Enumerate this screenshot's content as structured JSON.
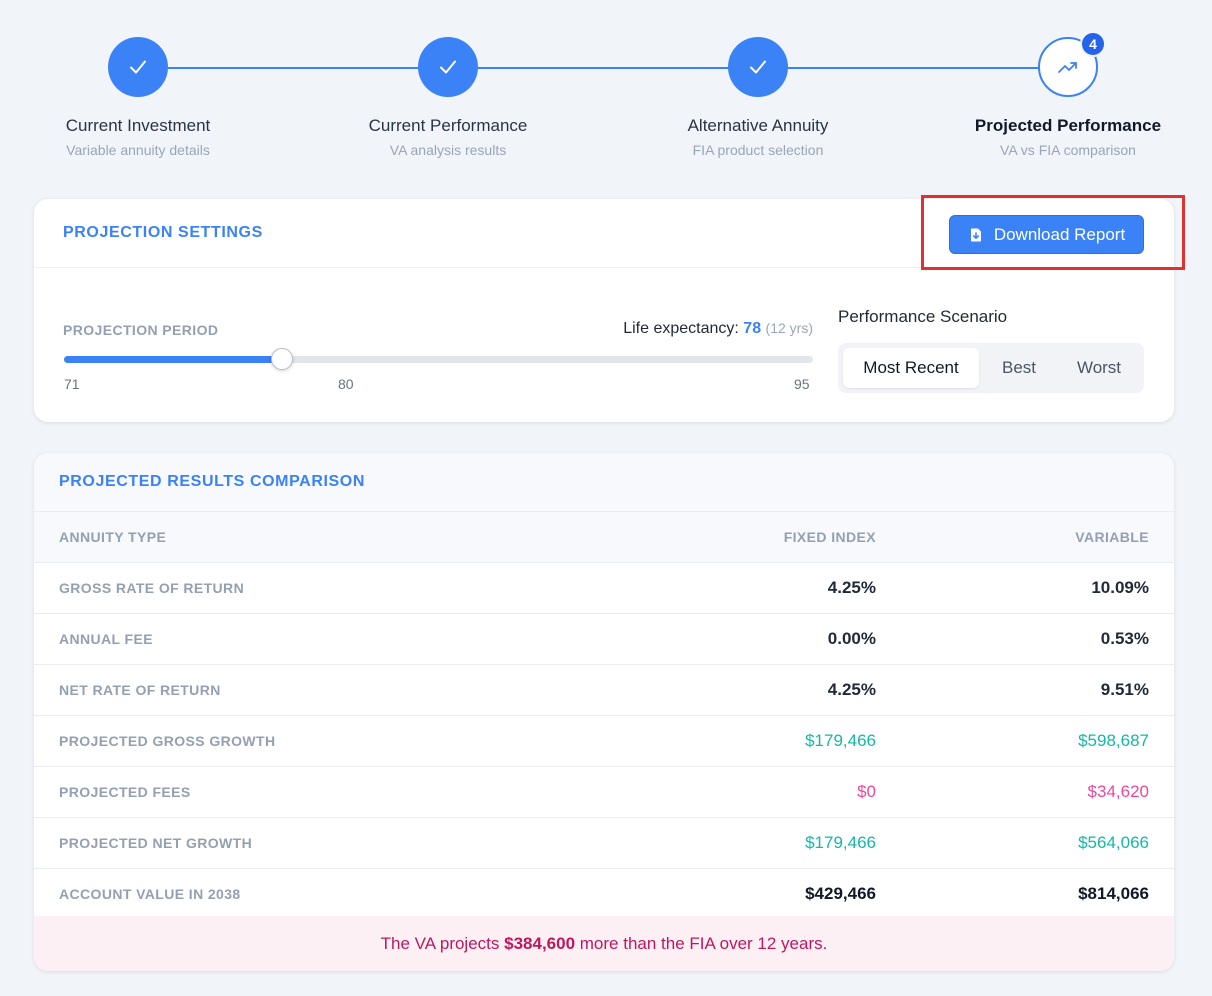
{
  "stepper": {
    "steps": [
      {
        "title": "Current Investment",
        "subtitle": "Variable annuity details",
        "status": "complete"
      },
      {
        "title": "Current Performance",
        "subtitle": "VA analysis results",
        "status": "complete"
      },
      {
        "title": "Alternative Annuity",
        "subtitle": "FIA product selection",
        "status": "complete"
      },
      {
        "title": "Projected Performance",
        "subtitle": "VA vs FIA comparison",
        "status": "active",
        "badge": "4"
      }
    ]
  },
  "settings": {
    "title": "PROJECTION SETTINGS",
    "download_label": "Download Report",
    "period_label": "PROJECTION PERIOD",
    "life_expectancy_label": "Life expectancy:",
    "life_expectancy_age": "78",
    "life_expectancy_years": "(12 yrs)",
    "slider": {
      "min": 71,
      "max": 95,
      "value": 78,
      "ticks": [
        "71",
        "80",
        "95"
      ]
    },
    "scenario_label": "Performance Scenario",
    "scenarios": [
      "Most Recent",
      "Best",
      "Worst"
    ],
    "selected_scenario": "Most Recent"
  },
  "results": {
    "title": "PROJECTED RESULTS COMPARISON",
    "headers": [
      "ANNUITY TYPE",
      "FIXED INDEX",
      "VARIABLE"
    ],
    "rows": [
      {
        "label": "GROSS RATE OF RETURN",
        "fixed": "4.25%",
        "variable": "10.09%",
        "style": "plain"
      },
      {
        "label": "ANNUAL FEE",
        "fixed": "0.00%",
        "variable": "0.53%",
        "style": "plain"
      },
      {
        "label": "NET RATE OF RETURN",
        "fixed": "4.25%",
        "variable": "9.51%",
        "style": "plain"
      },
      {
        "label": "PROJECTED GROSS GROWTH",
        "fixed": "$179,466",
        "variable": "$598,687",
        "style": "green"
      },
      {
        "label": "PROJECTED FEES",
        "fixed": "$0",
        "variable": "$34,620",
        "style": "pink"
      },
      {
        "label": "PROJECTED NET GROWTH",
        "fixed": "$179,466",
        "variable": "$564,066",
        "style": "green"
      },
      {
        "label": "ACCOUNT VALUE IN 2038",
        "fixed": "$429,466",
        "variable": "$814,066",
        "style": "dark"
      }
    ],
    "summary_prefix": "The VA projects",
    "summary_amount": "$384,600",
    "summary_suffix": "more than the FIA over 12 years."
  },
  "colors": {
    "accent": "#3b82f6",
    "positive": "#14b8a6",
    "fee": "#ec4899",
    "summary_text": "#be185d",
    "highlight": "#e03030"
  }
}
